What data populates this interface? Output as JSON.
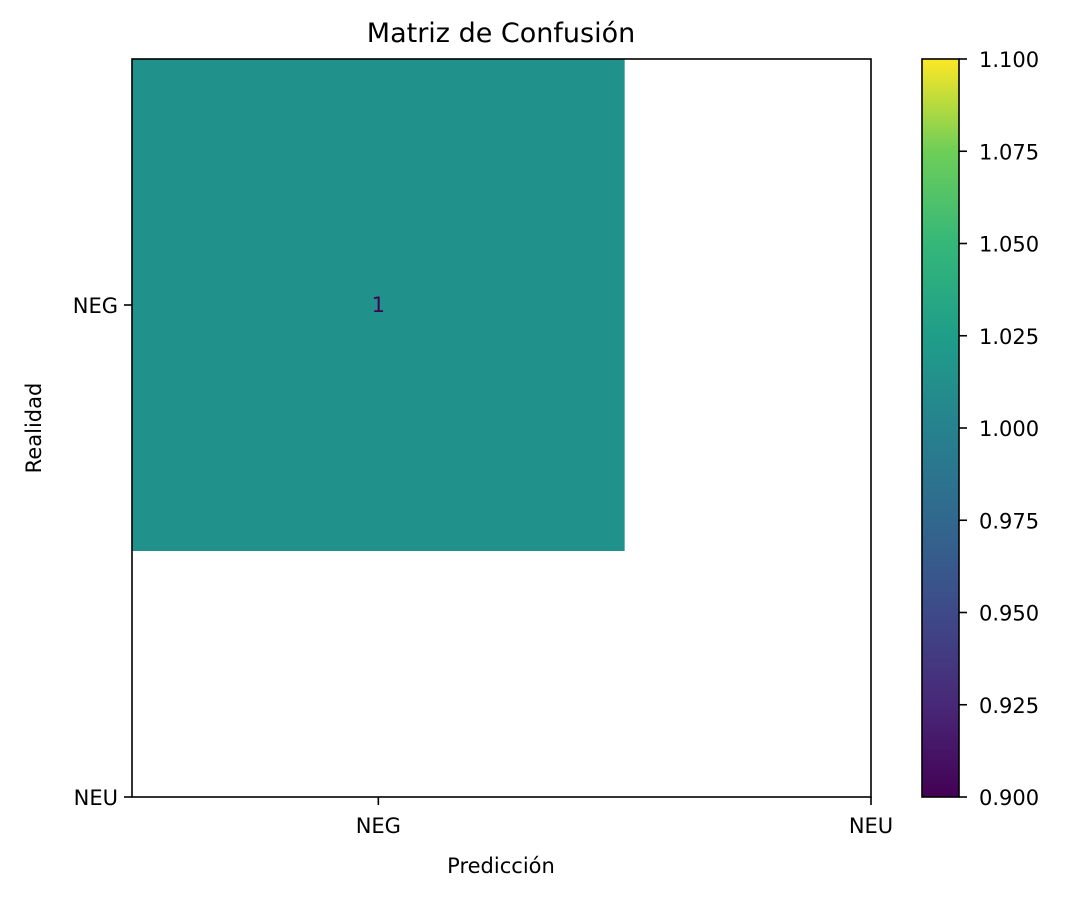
{
  "chart_data": {
    "type": "heatmap",
    "title": "Matriz de Confusión",
    "xlabel": "Predicción",
    "ylabel": "Realidad",
    "x_tick_labels": [
      "NEG",
      "NEU"
    ],
    "y_tick_labels": [
      "NEG",
      "NEU"
    ],
    "cells": [
      {
        "row": 0,
        "col": 0,
        "value": 1,
        "label": "1"
      }
    ],
    "colormap": "viridis",
    "colorbar": {
      "range": [
        0.9,
        1.1
      ],
      "ticks": [
        "0.900",
        "0.925",
        "0.950",
        "0.975",
        "1.000",
        "1.025",
        "1.050",
        "1.075",
        "1.100"
      ]
    },
    "cell_color": "#21918c",
    "annotation_color": "#440154"
  }
}
